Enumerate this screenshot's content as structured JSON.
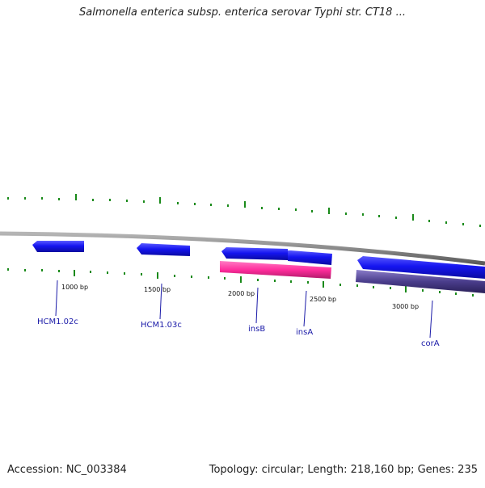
{
  "title": "Salmonella enterica subsp. enterica serovar Typhi str. CT18 ...",
  "footer": {
    "accession": "Accession: NC_003384",
    "summary": "Topology: circular; Length: 218,160 bp; Genes: 235"
  },
  "colors": {
    "backbone": "#8a8a8a",
    "ticks": "#1a8a1a",
    "gene_forward": "#1010e6",
    "feature_pink": "#ff2d9c",
    "feature_purple": "#4a3d8c",
    "label": "#1a1aa8"
  },
  "scale_labels": [
    "1000 bp",
    "1500 bp",
    "2000 bp",
    "2500 bp",
    "3000 bp"
  ],
  "genes": [
    {
      "name": "HCM1.02c"
    },
    {
      "name": "HCM1.03c"
    },
    {
      "name": "insB"
    },
    {
      "name": "insA"
    },
    {
      "name": "corA"
    }
  ]
}
